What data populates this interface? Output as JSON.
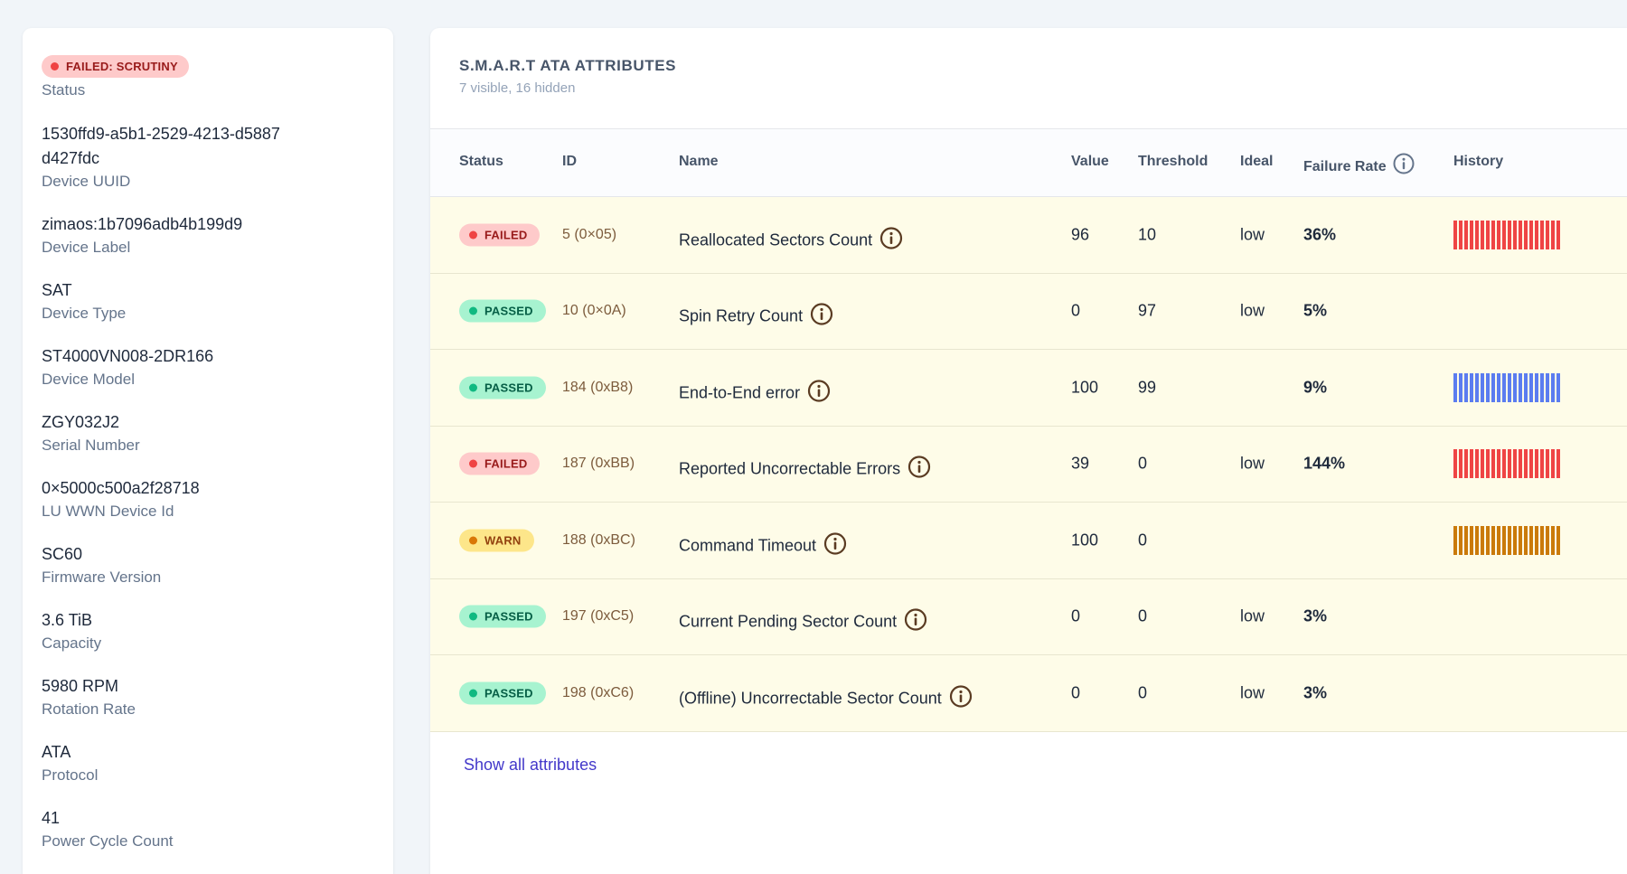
{
  "device": {
    "status_badge": "FAILED: SCRUTINY",
    "status_label": "Status",
    "details": [
      {
        "value": "1530ffd9-a5b1-2529-4213-d5887d427fdc",
        "label": "Device UUID"
      },
      {
        "value": "zimaos:1b7096adb4b199d9",
        "label": "Device Label"
      },
      {
        "value": "SAT",
        "label": "Device Type"
      },
      {
        "value": "ST4000VN008-2DR166",
        "label": "Device Model"
      },
      {
        "value": "ZGY032J2",
        "label": "Serial Number"
      },
      {
        "value": "0×5000c500a2f28718",
        "label": "LU WWN Device Id"
      },
      {
        "value": "SC60",
        "label": "Firmware Version"
      },
      {
        "value": "3.6 TiB",
        "label": "Capacity"
      },
      {
        "value": "5980 RPM",
        "label": "Rotation Rate"
      },
      {
        "value": "ATA",
        "label": "Protocol"
      },
      {
        "value": "41",
        "label": "Power Cycle Count"
      }
    ]
  },
  "attributes": {
    "title": "S.M.A.R.T ATA ATTRIBUTES",
    "subtitle": "7 visible, 16 hidden",
    "columns": {
      "status": "Status",
      "id": "ID",
      "name": "Name",
      "value": "Value",
      "threshold": "Threshold",
      "ideal": "Ideal",
      "failure_rate": "Failure Rate",
      "history": "History"
    },
    "rows": [
      {
        "status": "FAILED",
        "id": "5 (0×05)",
        "name": "Reallocated Sectors Count",
        "value": "96",
        "threshold": "10",
        "ideal": "low",
        "failure_rate": "36%",
        "history": "red"
      },
      {
        "status": "PASSED",
        "id": "10 (0×0A)",
        "name": "Spin Retry Count",
        "value": "0",
        "threshold": "97",
        "ideal": "low",
        "failure_rate": "5%",
        "history": ""
      },
      {
        "status": "PASSED",
        "id": "184 (0xB8)",
        "name": "End-to-End error",
        "value": "100",
        "threshold": "99",
        "ideal": "",
        "failure_rate": "9%",
        "history": "blue"
      },
      {
        "status": "FAILED",
        "id": "187 (0xBB)",
        "name": "Reported Uncorrectable Errors",
        "value": "39",
        "threshold": "0",
        "ideal": "low",
        "failure_rate": "144%",
        "history": "red"
      },
      {
        "status": "WARN",
        "id": "188 (0xBC)",
        "name": "Command Timeout",
        "value": "100",
        "threshold": "0",
        "ideal": "",
        "failure_rate": "",
        "history": "orange"
      },
      {
        "status": "PASSED",
        "id": "197 (0xC5)",
        "name": "Current Pending Sector Count",
        "value": "0",
        "threshold": "0",
        "ideal": "low",
        "failure_rate": "3%",
        "history": ""
      },
      {
        "status": "PASSED",
        "id": "198 (0xC6)",
        "name": "(Offline) Uncorrectable Sector Count",
        "value": "0",
        "threshold": "0",
        "ideal": "low",
        "failure_rate": "3%",
        "history": ""
      }
    ],
    "show_all_label": "Show all attributes"
  },
  "colors": {
    "history_red": "#ef4444",
    "history_blue": "#5b7cf0",
    "history_orange": "#ca7a0a",
    "info_icon": "#5a3b22"
  },
  "icons": {
    "info": "info-circle-icon",
    "status_dot": "dot-icon"
  }
}
